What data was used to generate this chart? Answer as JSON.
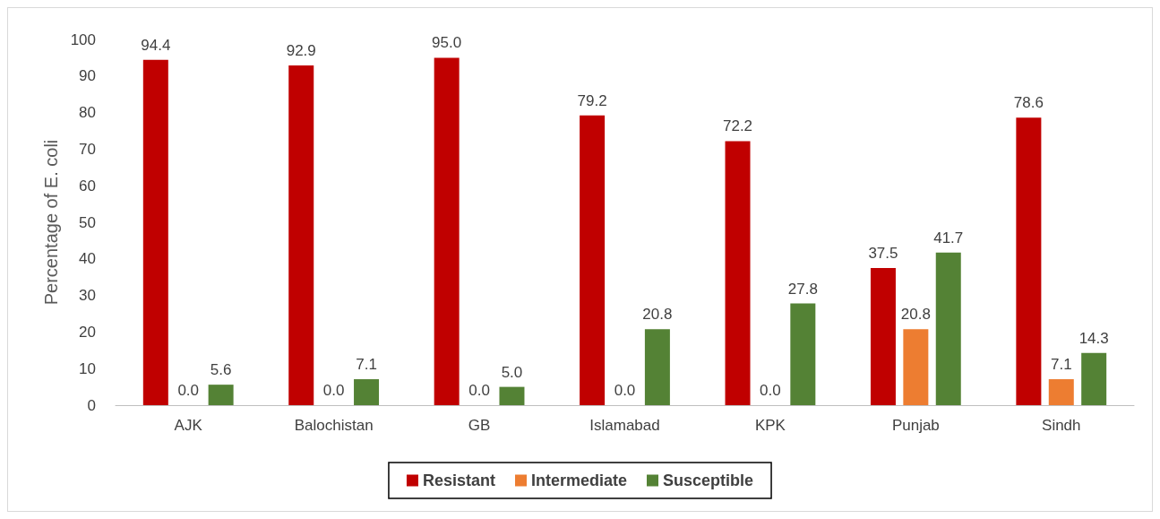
{
  "chart_data": {
    "type": "bar",
    "ylabel": "Percentage of E. coli",
    "categories": [
      "AJK",
      "Balochistan",
      "GB",
      "Islamabad",
      "KPK",
      "Punjab",
      "Sindh"
    ],
    "series": [
      {
        "name": "Resistant",
        "color": "#c00000",
        "values": [
          94.4,
          92.9,
          95.0,
          79.2,
          72.2,
          37.5,
          78.6
        ],
        "value_labels": [
          "94.4",
          "92.9",
          "95.0",
          "79.2",
          "72.2",
          "37.5",
          "78.6"
        ]
      },
      {
        "name": "Intermediate",
        "color": "#ed7d31",
        "values": [
          0,
          0,
          0,
          0,
          0,
          20.8,
          7.1
        ],
        "value_labels": [
          "0.0",
          "0.0",
          "0.0",
          "0.0",
          "0.0",
          "20.8",
          "7.1"
        ]
      },
      {
        "name": "Susceptible",
        "color": "#548235",
        "values": [
          5.6,
          7.1,
          5.0,
          20.8,
          27.8,
          41.7,
          14.3
        ],
        "value_labels": [
          "5.6",
          "7.1",
          "5.0",
          "20.8",
          "27.8",
          "41.7",
          "14.3"
        ]
      }
    ],
    "ylim": [
      0,
      100
    ],
    "yticks": [
      0,
      10,
      20,
      30,
      40,
      50,
      60,
      70,
      80,
      90,
      100
    ],
    "grid": false,
    "legend": "bottom"
  }
}
